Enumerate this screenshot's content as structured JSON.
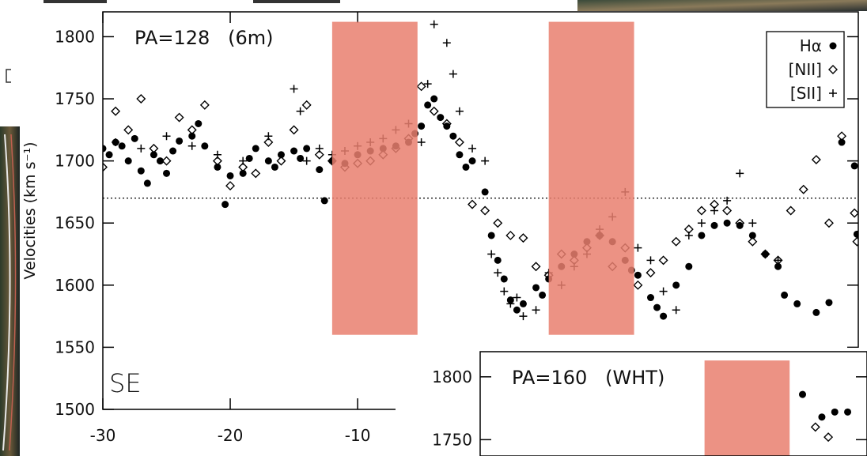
{
  "chart_data": [
    {
      "type": "scatter",
      "title": "PA=128   (6m)",
      "annotations": [
        "SE"
      ],
      "y_label": "Velocities (km s⁻¹)",
      "xlim": [
        -30,
        29.3
      ],
      "xticks": [
        -30,
        -20,
        -10
      ],
      "ylim": [
        1500,
        1820
      ],
      "yticks": [
        1500,
        1550,
        1600,
        1650,
        1700,
        1750,
        1800
      ],
      "hline": 1670,
      "legend": "upper right",
      "band_color": "#e97f6e",
      "bands": [
        {
          "x": [
            -12,
            -5.3
          ],
          "y": [
            1560,
            1812
          ]
        },
        {
          "x": [
            5,
            11.7
          ],
          "y": [
            1560,
            1812
          ]
        }
      ],
      "series": [
        {
          "name": "Hα",
          "marker": "circle",
          "color": "#000000",
          "x": [
            -30,
            -29.5,
            -29,
            -28.5,
            -28,
            -27.5,
            -27,
            -26.5,
            -26,
            -25.5,
            -25,
            -24.5,
            -24,
            -23,
            -22.5,
            -22,
            -21,
            -20.4,
            -20,
            -19,
            -18.5,
            -18,
            -17,
            -16.5,
            -16,
            -15,
            -14.5,
            -14,
            -13,
            -12.6,
            -12,
            -11,
            -10,
            -9,
            -8,
            -7,
            -6,
            -5.5,
            -5,
            -4.5,
            -4,
            -3.5,
            -3,
            -2.5,
            -2,
            -1.5,
            -1,
            0,
            0.5,
            1,
            1.5,
            2,
            2.5,
            3,
            4,
            4.5,
            5,
            6,
            7,
            8,
            9,
            10,
            11,
            11.5,
            12,
            13,
            13.5,
            14,
            15,
            16,
            17,
            18,
            19,
            20,
            21,
            22,
            23,
            23.5,
            24.5,
            26,
            27,
            28,
            29,
            29.2
          ],
          "values": [
            1710,
            1705,
            1715,
            1712,
            1700,
            1718,
            1692,
            1682,
            1705,
            1700,
            1690,
            1708,
            1716,
            1720,
            1730,
            1712,
            1695,
            1665,
            1688,
            1690,
            1702,
            1710,
            1700,
            1695,
            1705,
            1708,
            1702,
            1710,
            1693,
            1668,
            1700,
            1698,
            1705,
            1708,
            1710,
            1712,
            1715,
            1722,
            1728,
            1745,
            1750,
            1735,
            1728,
            1720,
            1705,
            1695,
            1700,
            1675,
            1640,
            1620,
            1605,
            1588,
            1580,
            1585,
            1598,
            1592,
            1605,
            1615,
            1625,
            1635,
            1640,
            1635,
            1620,
            1612,
            1608,
            1590,
            1582,
            1575,
            1600,
            1615,
            1640,
            1648,
            1650,
            1648,
            1640,
            1625,
            1615,
            1592,
            1585,
            1578,
            1586,
            1715,
            1696,
            1641
          ]
        },
        {
          "name": "[NII]",
          "marker": "diamond",
          "color": "#000000",
          "x": [
            -30,
            -29,
            -28,
            -27,
            -26,
            -25,
            -24,
            -23,
            -22,
            -21,
            -20,
            -19,
            -18,
            -17,
            -16,
            -15,
            -14,
            -13,
            -12,
            -11,
            -10,
            -9,
            -8,
            -7,
            -6,
            -5,
            -4,
            -3,
            -2,
            -1,
            0,
            1,
            2,
            3,
            4,
            5,
            6,
            7,
            8,
            9,
            10,
            11,
            12,
            13,
            14,
            15,
            16,
            17,
            18,
            19,
            20,
            21,
            22,
            23,
            24,
            25,
            26,
            27,
            28,
            29,
            29.2
          ],
          "values": [
            1695,
            1740,
            1725,
            1750,
            1710,
            1700,
            1735,
            1725,
            1745,
            1700,
            1680,
            1695,
            1690,
            1715,
            1700,
            1725,
            1745,
            1705,
            1700,
            1695,
            1698,
            1700,
            1705,
            1710,
            1718,
            1760,
            1740,
            1730,
            1715,
            1665,
            1660,
            1650,
            1640,
            1638,
            1615,
            1608,
            1625,
            1620,
            1630,
            1640,
            1615,
            1630,
            1600,
            1610,
            1620,
            1635,
            1645,
            1660,
            1665,
            1660,
            1650,
            1635,
            1625,
            1620,
            1660,
            1677,
            1701,
            1650,
            1720,
            1658,
            1635
          ]
        },
        {
          "name": "[SII]",
          "marker": "plus",
          "color": "#000000",
          "x": [
            -29,
            -27,
            -25,
            -23,
            -21,
            -19,
            -17,
            -15,
            -14.5,
            -14,
            -13,
            -12,
            -11,
            -10,
            -9,
            -8,
            -7,
            -6,
            -5,
            -4.5,
            -4,
            -3,
            -2.5,
            -2,
            -1,
            0,
            0.5,
            1,
            1.5,
            2,
            2.5,
            3,
            4,
            5,
            6,
            7,
            8,
            9,
            10,
            11,
            12,
            13,
            14,
            15,
            16,
            17,
            18,
            19,
            20,
            21,
            22,
            23
          ],
          "values": [
            1715,
            1710,
            1720,
            1712,
            1705,
            1700,
            1720,
            1758,
            1740,
            1700,
            1710,
            1705,
            1708,
            1712,
            1715,
            1718,
            1725,
            1730,
            1715,
            1762,
            1810,
            1795,
            1770,
            1740,
            1710,
            1700,
            1625,
            1610,
            1595,
            1585,
            1590,
            1575,
            1580,
            1610,
            1600,
            1615,
            1625,
            1645,
            1655,
            1675,
            1630,
            1620,
            1595,
            1580,
            1640,
            1650,
            1660,
            1668,
            1690,
            1650,
            1625,
            1620
          ]
        }
      ]
    },
    {
      "type": "scatter",
      "title": "PA=160   (WHT)",
      "xlim": [
        0,
        30
      ],
      "ylim": [
        1737,
        1820
      ],
      "yticks": [
        1750,
        1800
      ],
      "band_color": "#e97f6e",
      "bands": [
        {
          "x": [
            17.4,
            24
          ],
          "y": [
            1737,
            1813
          ]
        }
      ],
      "series": [
        {
          "marker": "circle",
          "color": "#000000",
          "x": [
            25,
            26.5,
            27.5,
            28.5
          ],
          "values": [
            1786,
            1768,
            1772,
            1772
          ]
        },
        {
          "marker": "diamond",
          "color": "#000000",
          "x": [
            26,
            27
          ],
          "values": [
            1760,
            1752
          ]
        }
      ]
    }
  ]
}
